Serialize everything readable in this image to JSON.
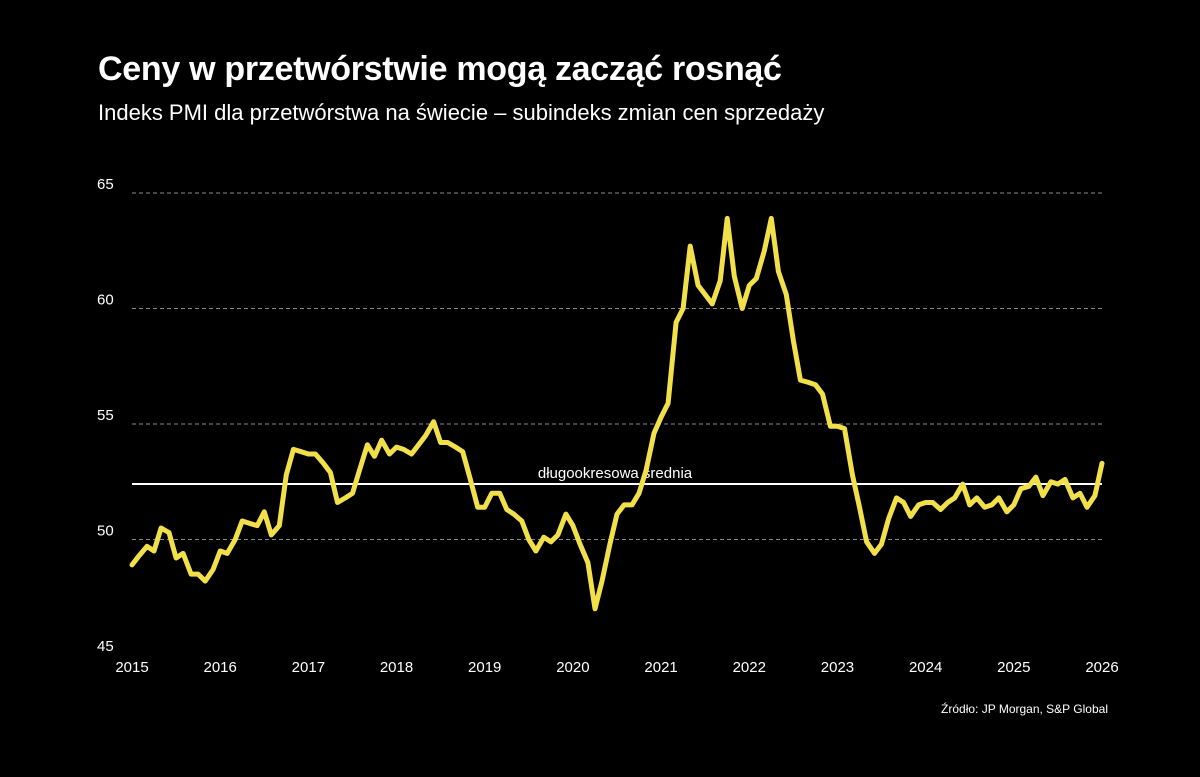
{
  "header": {
    "title": "Ceny w przetwórstwie mogą zacząć rosnąć",
    "subtitle": "Indeks PMI dla przetwórstwa na świecie – subindeks zmian cen sprzedaży"
  },
  "footer": {
    "source": "Źródło: JP Morgan, S&P Global"
  },
  "colors": {
    "background": "#000000",
    "series": "#f2e04a",
    "reference": "#ffffff",
    "grid": "#8a8a8a"
  },
  "chart_data": {
    "type": "line",
    "title": "Ceny w przetwórstwie mogą zacząć rosnąć",
    "subtitle": "Indeks PMI dla przetwórstwa na świecie – subindeks zmian cen sprzedaży",
    "xlabel": "",
    "ylabel": "",
    "xlim": [
      2015,
      2026
    ],
    "ylim": [
      45,
      65
    ],
    "x_ticks": [
      2015,
      2016,
      2017,
      2018,
      2019,
      2020,
      2021,
      2022,
      2023,
      2024,
      2025,
      2026
    ],
    "y_ticks": [
      45,
      50,
      55,
      60,
      65
    ],
    "grid": "horizontal dashed",
    "reference_line": {
      "label": "długookresowa średnia",
      "value": 52.4
    },
    "series": [
      {
        "values": [
          [
            2015.0,
            48.9
          ],
          [
            2015.08,
            49.3
          ],
          [
            2015.17,
            49.7
          ],
          [
            2015.25,
            49.5
          ],
          [
            2015.33,
            50.5
          ],
          [
            2015.42,
            50.3
          ],
          [
            2015.5,
            49.2
          ],
          [
            2015.58,
            49.4
          ],
          [
            2015.67,
            48.5
          ],
          [
            2015.75,
            48.5
          ],
          [
            2015.83,
            48.2
          ],
          [
            2015.92,
            48.7
          ],
          [
            2016.0,
            49.5
          ],
          [
            2016.08,
            49.4
          ],
          [
            2016.17,
            50.0
          ],
          [
            2016.25,
            50.8
          ],
          [
            2016.33,
            50.7
          ],
          [
            2016.42,
            50.6
          ],
          [
            2016.5,
            51.2
          ],
          [
            2016.58,
            50.2
          ],
          [
            2016.67,
            50.6
          ],
          [
            2016.75,
            52.8
          ],
          [
            2016.83,
            53.9
          ],
          [
            2016.92,
            53.8
          ],
          [
            2017.0,
            53.7
          ],
          [
            2017.08,
            53.7
          ],
          [
            2017.17,
            53.3
          ],
          [
            2017.25,
            52.9
          ],
          [
            2017.33,
            51.6
          ],
          [
            2017.42,
            51.8
          ],
          [
            2017.5,
            52.0
          ],
          [
            2017.58,
            53.0
          ],
          [
            2017.67,
            54.1
          ],
          [
            2017.75,
            53.6
          ],
          [
            2017.83,
            54.3
          ],
          [
            2017.92,
            53.7
          ],
          [
            2018.0,
            54.0
          ],
          [
            2018.08,
            53.9
          ],
          [
            2018.17,
            53.7
          ],
          [
            2018.25,
            54.1
          ],
          [
            2018.33,
            54.5
          ],
          [
            2018.42,
            55.1
          ],
          [
            2018.5,
            54.2
          ],
          [
            2018.58,
            54.2
          ],
          [
            2018.67,
            54.0
          ],
          [
            2018.75,
            53.8
          ],
          [
            2018.83,
            52.7
          ],
          [
            2018.92,
            51.4
          ],
          [
            2019.0,
            51.4
          ],
          [
            2019.08,
            52.0
          ],
          [
            2019.17,
            52.0
          ],
          [
            2019.25,
            51.3
          ],
          [
            2019.33,
            51.1
          ],
          [
            2019.42,
            50.8
          ],
          [
            2019.5,
            50.0
          ],
          [
            2019.58,
            49.5
          ],
          [
            2019.67,
            50.1
          ],
          [
            2019.75,
            49.9
          ],
          [
            2019.83,
            50.2
          ],
          [
            2019.92,
            51.1
          ],
          [
            2020.0,
            50.6
          ],
          [
            2020.08,
            49.8
          ],
          [
            2020.17,
            49.0
          ],
          [
            2020.25,
            47.0
          ],
          [
            2020.33,
            48.2
          ],
          [
            2020.42,
            49.8
          ],
          [
            2020.5,
            51.1
          ],
          [
            2020.58,
            51.5
          ],
          [
            2020.67,
            51.5
          ],
          [
            2020.75,
            52.0
          ],
          [
            2020.83,
            53.0
          ],
          [
            2020.92,
            54.6
          ],
          [
            2021.0,
            55.3
          ],
          [
            2021.08,
            55.9
          ],
          [
            2021.17,
            59.4
          ],
          [
            2021.25,
            60.0
          ],
          [
            2021.33,
            62.7
          ],
          [
            2021.42,
            61.0
          ],
          [
            2021.5,
            60.6
          ],
          [
            2021.58,
            60.2
          ],
          [
            2021.67,
            61.2
          ],
          [
            2021.75,
            63.9
          ],
          [
            2021.83,
            61.4
          ],
          [
            2021.92,
            60.0
          ],
          [
            2022.0,
            61.0
          ],
          [
            2022.08,
            61.3
          ],
          [
            2022.17,
            62.5
          ],
          [
            2022.25,
            63.9
          ],
          [
            2022.33,
            61.6
          ],
          [
            2022.42,
            60.6
          ],
          [
            2022.5,
            58.6
          ],
          [
            2022.58,
            56.9
          ],
          [
            2022.67,
            56.8
          ],
          [
            2022.75,
            56.7
          ],
          [
            2022.83,
            56.3
          ],
          [
            2022.92,
            54.9
          ],
          [
            2023.0,
            54.9
          ],
          [
            2023.08,
            54.8
          ],
          [
            2023.17,
            52.8
          ],
          [
            2023.25,
            51.4
          ],
          [
            2023.33,
            49.9
          ],
          [
            2023.42,
            49.4
          ],
          [
            2023.5,
            49.8
          ],
          [
            2023.58,
            50.9
          ],
          [
            2023.67,
            51.8
          ],
          [
            2023.75,
            51.6
          ],
          [
            2023.83,
            51.0
          ],
          [
            2023.92,
            51.5
          ],
          [
            2024.0,
            51.6
          ],
          [
            2024.08,
            51.6
          ],
          [
            2024.17,
            51.3
          ],
          [
            2024.25,
            51.6
          ],
          [
            2024.33,
            51.8
          ],
          [
            2024.42,
            52.4
          ],
          [
            2024.5,
            51.5
          ],
          [
            2024.58,
            51.8
          ],
          [
            2024.67,
            51.4
          ],
          [
            2024.75,
            51.5
          ],
          [
            2024.83,
            51.8
          ],
          [
            2024.92,
            51.2
          ],
          [
            2025.0,
            51.5
          ],
          [
            2025.08,
            52.2
          ],
          [
            2025.17,
            52.3
          ],
          [
            2025.25,
            52.7
          ],
          [
            2025.33,
            51.9
          ],
          [
            2025.42,
            52.5
          ],
          [
            2025.5,
            52.4
          ],
          [
            2025.58,
            52.6
          ],
          [
            2025.67,
            51.8
          ],
          [
            2025.75,
            52.0
          ],
          [
            2025.83,
            51.4
          ],
          [
            2025.92,
            51.9
          ],
          [
            2026.0,
            53.3
          ]
        ]
      }
    ]
  }
}
